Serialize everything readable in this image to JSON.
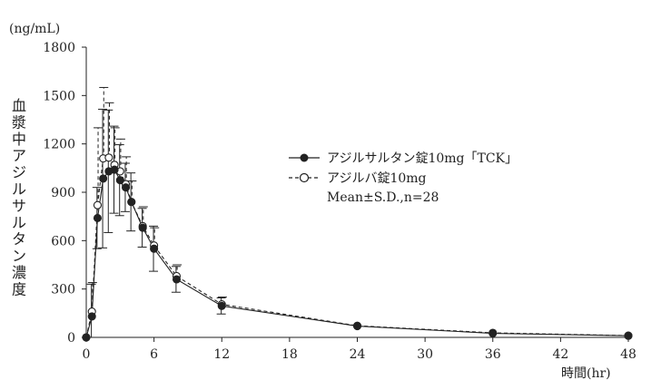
{
  "chart_data": {
    "type": "line",
    "y_unit": "(ng/mL)",
    "x_unit": "時間(hr)",
    "ylabel": "血漿中アジルサルタン濃度",
    "xlim": [
      0,
      48
    ],
    "ylim": [
      0,
      1800
    ],
    "x_ticks": [
      0,
      6,
      12,
      18,
      24,
      30,
      36,
      42,
      48
    ],
    "y_ticks": [
      0,
      300,
      600,
      900,
      1200,
      1500,
      1800
    ],
    "grid": false,
    "legend_position": "upper-right",
    "series": [
      {
        "name": "アジルサルタン錠10mg「TCK」",
        "marker": "filled-circle",
        "line": "solid",
        "x": [
          0,
          0.5,
          1,
          1.5,
          2,
          2.5,
          3,
          3.5,
          4,
          5,
          6,
          8,
          12,
          24,
          36,
          48
        ],
        "y": [
          0,
          130,
          740,
          985,
          1030,
          1040,
          975,
          930,
          840,
          680,
          550,
          360,
          195,
          70,
          25,
          10
        ],
        "err": [
          0,
          200,
          190,
          430,
          380,
          270,
          220,
          150,
          180,
          120,
          140,
          80,
          50,
          0,
          0,
          0
        ]
      },
      {
        "name": "アジルバ錠10mg",
        "marker": "open-circle",
        "line": "dashed",
        "x": [
          0,
          0.5,
          1,
          1.5,
          2,
          2.5,
          3,
          3.5,
          4,
          5,
          6,
          8,
          12,
          24,
          36,
          48
        ],
        "y": [
          0,
          160,
          820,
          1110,
          1115,
          1070,
          1030,
          950,
          840,
          690,
          570,
          380,
          205,
          72,
          28,
          11
        ],
        "err": [
          0,
          180,
          480,
          440,
          340,
          230,
          200,
          170,
          130,
          120,
          110,
          70,
          45,
          0,
          0,
          0
        ]
      }
    ],
    "annotation": "Mean±S.D.,n=28"
  }
}
